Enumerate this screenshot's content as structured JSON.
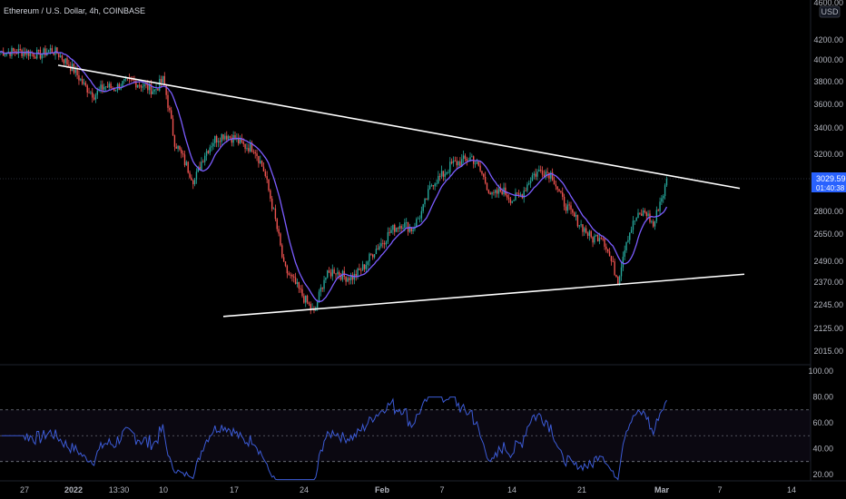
{
  "header": {
    "symbol_title": "Ethereum / U.S. Dollar, 4h, COINBASE",
    "currency_badge": "USD"
  },
  "price_scale": {
    "current_price": "3029.59",
    "countdown": "01:40:38",
    "accent_color": "#2962ff"
  },
  "chart_data": [
    {
      "type": "candlestick",
      "title": "Ethereum / U.S. Dollar, 4h, COINBASE",
      "y_ticks": [
        "4600.00",
        "4200.00",
        "4000.00",
        "3800.00",
        "3600.00",
        "3400.00",
        "3200.00",
        "3029.59",
        "2800.00",
        "2650.00",
        "2490.00",
        "2370.00",
        "2245.00",
        "2125.00",
        "2015.00"
      ],
      "y_scale": "log",
      "ylim": [
        1960,
        4600
      ],
      "x_ticks": [
        "27",
        "2022",
        "13:30",
        "10",
        "17",
        "24",
        "Feb",
        "7",
        "14",
        "21",
        "Mar",
        "7",
        "14"
      ],
      "up_color": "#26a69a",
      "down_color": "#ef5350",
      "ma_color": "#7b5cff",
      "trendlines": [
        {
          "name": "upper",
          "from": [
            "Dec 31",
            3950
          ],
          "to": [
            "Mar 12",
            2960
          ]
        },
        {
          "name": "lower",
          "from": [
            "Jan 19",
            2185
          ],
          "to": [
            "Mar 12",
            2415
          ]
        }
      ],
      "price_path": [
        [
          "Dec 27",
          4080
        ],
        [
          "Dec 29",
          4050
        ],
        [
          "Dec 30",
          4100
        ],
        [
          "Dec 31",
          4060
        ],
        [
          "Jan 1",
          3900
        ],
        [
          "Jan 2",
          3760
        ],
        [
          "Jan 3",
          3680
        ],
        [
          "Jan 4",
          3760
        ],
        [
          "Jan 5",
          3740
        ],
        [
          "Jan 6",
          3790
        ],
        [
          "Jan 7",
          3800
        ],
        [
          "Jan 8",
          3760
        ],
        [
          "Jan 9",
          3720
        ],
        [
          "Jan 10",
          3820
        ],
        [
          "Jan 11",
          3300
        ],
        [
          "Jan 12",
          3150
        ],
        [
          "Jan 13",
          3010
        ],
        [
          "Jan 14",
          3200
        ],
        [
          "Jan 15",
          3310
        ],
        [
          "Jan 16",
          3350
        ],
        [
          "Jan 17",
          3320
        ],
        [
          "Jan 18",
          3260
        ],
        [
          "Jan 19",
          3250
        ],
        [
          "Jan 20",
          3080
        ],
        [
          "Jan 21",
          2780
        ],
        [
          "Jan 22",
          2450
        ],
        [
          "Jan 23",
          2370
        ],
        [
          "Jan 24",
          2280
        ],
        [
          "Jan 25",
          2200
        ],
        [
          "Jan 26",
          2390
        ],
        [
          "Jan 27",
          2440
        ],
        [
          "Jan 28",
          2400
        ],
        [
          "Jan 29",
          2400
        ],
        [
          "Jan 30",
          2460
        ],
        [
          "Jan 31",
          2550
        ],
        [
          "Feb 1",
          2600
        ],
        [
          "Feb 2",
          2680
        ],
        [
          "Feb 3",
          2720
        ],
        [
          "Feb 4",
          2680
        ],
        [
          "Feb 5",
          2800
        ],
        [
          "Feb 6",
          3000
        ],
        [
          "Feb 7",
          3050
        ],
        [
          "Feb 8",
          3130
        ],
        [
          "Feb 9",
          3150
        ],
        [
          "Feb 10",
          3180
        ],
        [
          "Feb 11",
          3060
        ],
        [
          "Feb 12",
          2900
        ],
        [
          "Feb 13",
          2950
        ],
        [
          "Feb 14",
          2880
        ],
        [
          "Feb 15",
          2920
        ],
        [
          "Feb 16",
          3050
        ],
        [
          "Feb 17",
          3090
        ],
        [
          "Feb 18",
          3060
        ],
        [
          "Feb 19",
          2880
        ],
        [
          "Feb 20",
          2780
        ],
        [
          "Feb 21",
          2700
        ],
        [
          "Feb 22",
          2620
        ],
        [
          "Feb 23",
          2650
        ],
        [
          "Feb 24",
          2480
        ],
        [
          "Feb 25",
          2380
        ],
        [
          "Feb 26",
          2600
        ],
        [
          "Feb 27",
          2750
        ],
        [
          "Feb 28",
          2800
        ],
        [
          "Mar 1",
          2700
        ],
        [
          "Mar 1b",
          2850
        ],
        [
          "Mar 2",
          2930
        ],
        [
          "Mar 2b",
          3029.59
        ]
      ]
    },
    {
      "type": "line",
      "title": "",
      "y_ticks": [
        "100.00",
        "80.00",
        "60.00",
        "40.00",
        "20.00"
      ],
      "ylim": [
        15,
        105
      ],
      "band": [
        30,
        70
      ],
      "mid_line": 50,
      "line_color": "#3c5bd6",
      "band_color": "#7e57c2"
    }
  ]
}
